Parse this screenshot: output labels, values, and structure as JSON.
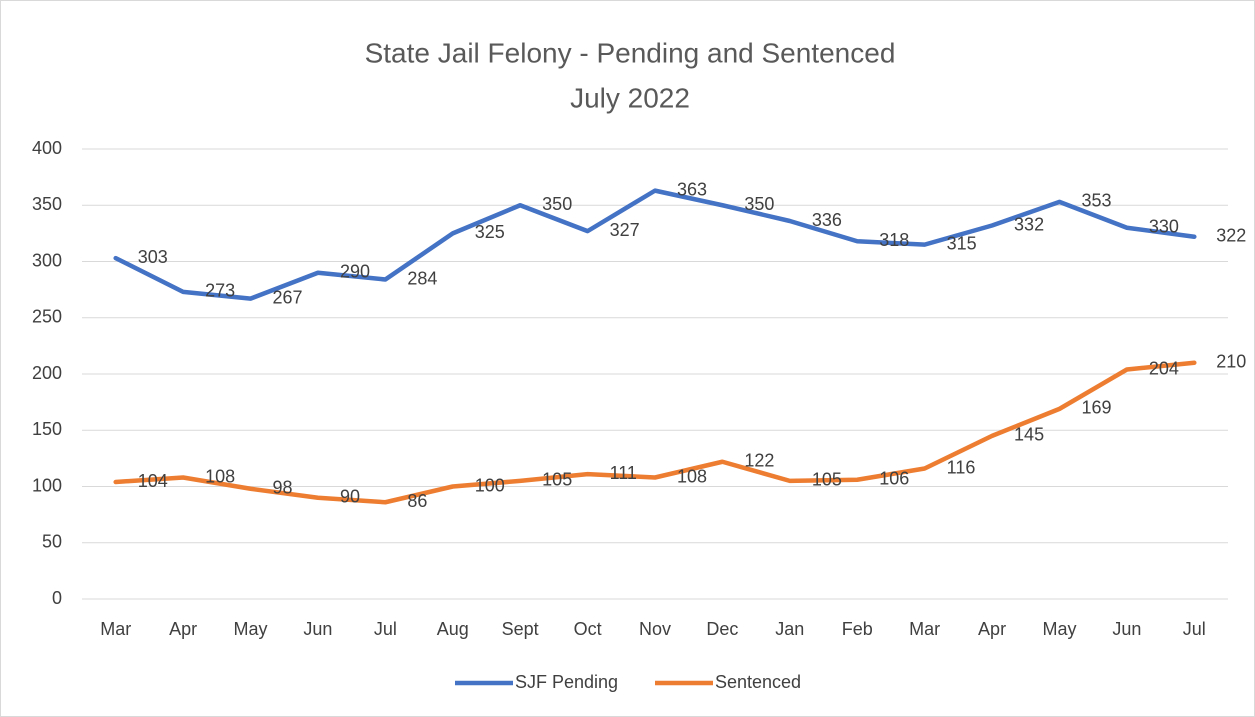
{
  "chart_data": {
    "type": "line",
    "title": "State Jail Felony - Pending and Sentenced",
    "subtitle": "July 2022",
    "categories": [
      "Mar",
      "Apr",
      "May",
      "Jun",
      "Jul",
      "Aug",
      "Sept",
      "Oct",
      "Nov",
      "Dec",
      "Jan",
      "Feb",
      "Mar",
      "Apr",
      "May",
      "Jun",
      "Jul"
    ],
    "series": [
      {
        "name": "SJF Pending",
        "color": "#4472c4",
        "values": [
          303,
          273,
          267,
          290,
          284,
          325,
          350,
          327,
          363,
          350,
          336,
          318,
          315,
          332,
          353,
          330,
          322
        ]
      },
      {
        "name": "Sentenced",
        "color": "#ed7d31",
        "values": [
          104,
          108,
          98,
          90,
          86,
          100,
          105,
          111,
          108,
          122,
          105,
          106,
          116,
          145,
          169,
          204,
          210
        ]
      }
    ],
    "ylim": [
      0,
      400
    ],
    "yticks": [
      0,
      50,
      100,
      150,
      200,
      250,
      300,
      350,
      400
    ],
    "grid": true,
    "legend": "bottom"
  }
}
